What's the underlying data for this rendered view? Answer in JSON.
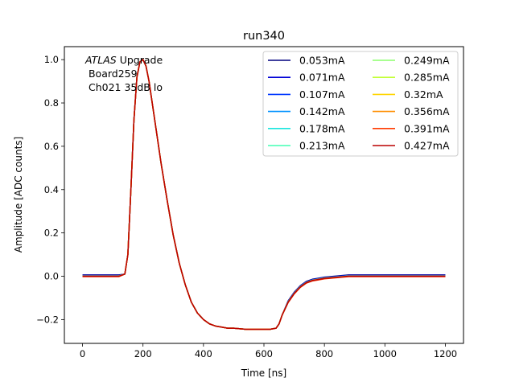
{
  "chart_data": {
    "type": "line",
    "title": "run340",
    "xlabel": "Time [ns]",
    "ylabel": "Amplitude [ADC counts]",
    "xlim": [
      -60,
      1260
    ],
    "ylim": [
      -0.31,
      1.06
    ],
    "xticks": [
      0,
      200,
      400,
      600,
      800,
      1000,
      1200
    ],
    "xtick_labels": [
      "0",
      "200",
      "400",
      "600",
      "800",
      "1000",
      "1200"
    ],
    "yticks": [
      -0.2,
      0.0,
      0.2,
      0.4,
      0.6,
      0.8,
      1.0
    ],
    "ytick_labels": [
      "−0.2",
      "0.0",
      "0.2",
      "0.4",
      "0.6",
      "0.8",
      "1.0"
    ],
    "annotation": {
      "italic": "ATLAS",
      "rest": " Upgrade",
      "line2": " Board259",
      "line3": " Ch021 35dB lo"
    },
    "legend_placement": "top-right",
    "waveform": {
      "x": [
        0,
        40,
        80,
        120,
        140,
        150,
        160,
        170,
        180,
        190,
        200,
        210,
        220,
        240,
        260,
        280,
        300,
        320,
        340,
        360,
        380,
        400,
        420,
        440,
        460,
        480,
        500,
        540,
        580,
        620,
        640,
        650,
        660,
        680,
        700,
        720,
        740,
        760,
        780,
        800,
        840,
        880,
        920,
        960,
        1000,
        1050,
        1100,
        1150,
        1200
      ],
      "y": [
        0.0,
        0.0,
        0.0,
        0.0,
        0.01,
        0.1,
        0.4,
        0.72,
        0.92,
        0.99,
        1.0,
        0.97,
        0.9,
        0.71,
        0.52,
        0.35,
        0.19,
        0.06,
        -0.04,
        -0.12,
        -0.17,
        -0.2,
        -0.22,
        -0.23,
        -0.235,
        -0.24,
        -0.24,
        -0.245,
        -0.245,
        -0.245,
        -0.24,
        -0.22,
        -0.18,
        -0.12,
        -0.08,
        -0.05,
        -0.03,
        -0.02,
        -0.015,
        -0.01,
        -0.005,
        0.0,
        0.0,
        0.0,
        0.0,
        0.0,
        0.0,
        0.0,
        0.0
      ]
    },
    "series": [
      {
        "name": "0.053mA",
        "color": "#00007f",
        "offset": 0.006
      },
      {
        "name": "0.071mA",
        "color": "#0000d6",
        "offset": 0.004
      },
      {
        "name": "0.107mA",
        "color": "#0037ff",
        "offset": 0.003
      },
      {
        "name": "0.142mA",
        "color": "#0092ff",
        "offset": 0.002
      },
      {
        "name": "0.178mA",
        "color": "#19e5de",
        "offset": 0.001
      },
      {
        "name": "0.213mA",
        "color": "#42ffb4",
        "offset": 0.0
      },
      {
        "name": "0.249mA",
        "color": "#8cff6b",
        "offset": -0.001
      },
      {
        "name": "0.285mA",
        "color": "#c2ff35",
        "offset": 0.0
      },
      {
        "name": "0.32mA",
        "color": "#ffd500",
        "offset": 0.001
      },
      {
        "name": "0.356mA",
        "color": "#ff8e00",
        "offset": 0.0
      },
      {
        "name": "0.391mA",
        "color": "#ff3b00",
        "offset": -0.002
      },
      {
        "name": "0.427mA",
        "color": "#bb0000",
        "offset": 0.0
      }
    ]
  }
}
